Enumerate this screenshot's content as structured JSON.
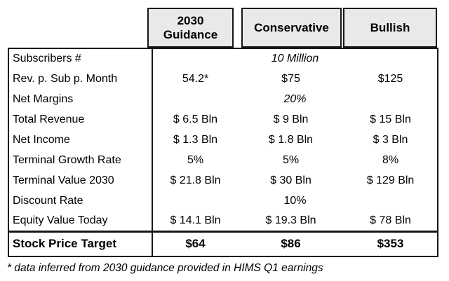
{
  "chart_data": {
    "type": "table",
    "title": "",
    "columns": [
      "",
      "2030 Guidance",
      "Conservative",
      "Bullish"
    ],
    "rows": [
      {
        "label": "Subscribers #",
        "merged": "10 Million",
        "italic": true
      },
      {
        "label": "Rev. p. Sub p. Month",
        "v1": "54.2*",
        "v2": "$75",
        "v3": "$125"
      },
      {
        "label": "Net Margins",
        "merged": "20%",
        "italic": true
      },
      {
        "label": "Total Revenue",
        "v1": "$ 6.5 Bln",
        "v2": "$ 9 Bln",
        "v3": "$ 15 Bln"
      },
      {
        "label": "Net Income",
        "v1": "$ 1.3 Bln",
        "v2": "$ 1.8 Bln",
        "v3": "$ 3 Bln"
      },
      {
        "label": "Terminal Growth Rate",
        "v1": "5%",
        "v2": "5%",
        "v3": "8%"
      },
      {
        "label": "Terminal Value 2030",
        "v1": "$ 21.8 Bln",
        "v2": "$ 30 Bln",
        "v3": "$ 129 Bln"
      },
      {
        "label": "Discount Rate",
        "merged": "10%",
        "italic": false
      },
      {
        "label": "Equity Value Today",
        "v1": "$ 14.1 Bln",
        "v2": "$ 19.3 Bln",
        "v3": "$ 78 Bln"
      }
    ],
    "summary_row": {
      "label": "Stock Price Target",
      "v1": "$64",
      "v2": "$86",
      "v3": "$353"
    },
    "footnote": "* data inferred from 2030 guidance provided in HIMS Q1 earnings",
    "layout": {
      "grid": "outer border + label-column divider only",
      "legend": "none"
    }
  },
  "colors": {
    "header_bg": "#e9e9e9",
    "border": "#161616",
    "text": "#000000",
    "background": "#ffffff"
  }
}
